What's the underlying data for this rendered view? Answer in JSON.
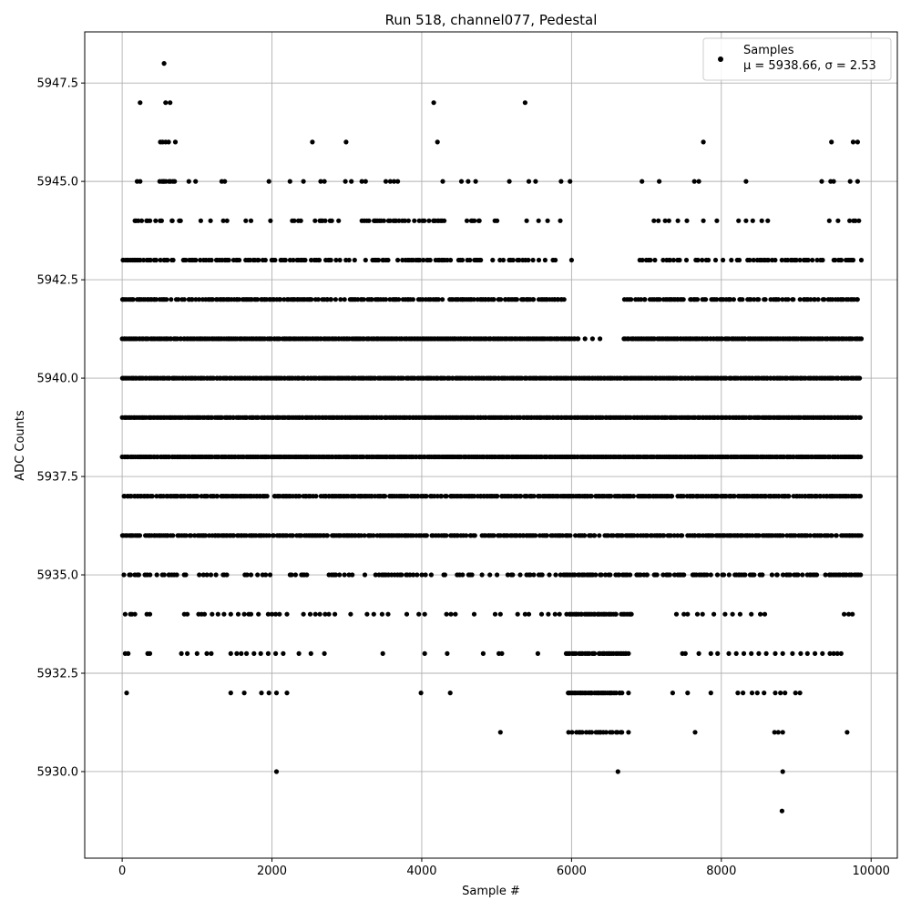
{
  "chart_data": {
    "type": "scatter",
    "title": "Run 518, channel077, Pedestal",
    "xlabel": "Sample #",
    "ylabel": "ADC Counts",
    "xlim": [
      -500,
      10350
    ],
    "ylim": [
      5927.8,
      5948.8
    ],
    "xticks": [
      0,
      2000,
      4000,
      6000,
      8000,
      10000
    ],
    "xtick_labels": [
      "0",
      "2000",
      "4000",
      "6000",
      "8000",
      "10000"
    ],
    "yticks": [
      5930.0,
      5932.5,
      5935.0,
      5937.5,
      5940.0,
      5942.5,
      5945.0,
      5947.5
    ],
    "ytick_labels": [
      "5930.0",
      "5932.5",
      "5935.0",
      "5937.5",
      "5940.0",
      "5942.5",
      "5945.0",
      "5947.5"
    ],
    "grid": true,
    "legend": {
      "placement": "top-right",
      "entries": [
        "Samples",
        "μ = 5938.66, σ = 2.53"
      ]
    },
    "marker_color": "#000000",
    "x_range": [
      0,
      9870
    ],
    "bands": [
      {
        "y": 5929,
        "segments": [],
        "points": [
          8810
        ]
      },
      {
        "y": 5930,
        "segments": [],
        "points": [
          2060,
          6620,
          8820
        ]
      },
      {
        "y": 5931,
        "segments": [
          [
            5950,
            6700,
            0.6
          ]
        ],
        "points": [
          5050,
          6760,
          7650,
          8710,
          8760,
          8820,
          9680
        ]
      },
      {
        "y": 5932,
        "segments": [
          [
            5950,
            6700,
            0.9
          ]
        ],
        "points": [
          60,
          1450,
          1630,
          1860,
          1960,
          2060,
          2200,
          3990,
          4380,
          6760,
          7350,
          7550,
          7860,
          8220,
          8290,
          8410,
          8480,
          8570,
          8720,
          8790,
          8850,
          8990,
          9050
        ]
      },
      {
        "y": 5933,
        "segments": [
          [
            5920,
            6760,
            0.9
          ]
        ],
        "points": [
          40,
          80,
          340,
          370,
          790,
          870,
          1000,
          1130,
          1190,
          1450,
          1530,
          1590,
          1660,
          1760,
          1850,
          1950,
          2050,
          2150,
          2360,
          2520,
          2700,
          3480,
          4040,
          4340,
          4820,
          5030,
          5070,
          5550,
          7480,
          7520,
          7700,
          7860,
          7950,
          8100,
          8200,
          8300,
          8400,
          8500,
          8600,
          8720,
          8820,
          8950,
          9060,
          9150,
          9250,
          9350,
          9450,
          9500,
          9550,
          9600
        ]
      },
      {
        "y": 5934,
        "segments": [
          [
            5900,
            6850,
            0.9
          ]
        ],
        "points": [
          40,
          110,
          130,
          170,
          330,
          370,
          830,
          870,
          1020,
          1060,
          1100,
          1200,
          1280,
          1360,
          1450,
          1550,
          1630,
          1690,
          1720,
          1820,
          1950,
          2000,
          2050,
          2100,
          2200,
          2420,
          2510,
          2580,
          2640,
          2710,
          2760,
          2840,
          3050,
          3270,
          3360,
          3470,
          3550,
          3800,
          3960,
          4040,
          4330,
          4390,
          4450,
          4700,
          4980,
          5050,
          5280,
          5380,
          5430,
          5600,
          5690,
          5780,
          5840,
          7400,
          7500,
          7550,
          7680,
          7750,
          7900,
          8050,
          8150,
          8250,
          8400,
          8520,
          8580,
          9640,
          9700,
          9750
        ]
      },
      {
        "y": 5935,
        "segments": [
          [
            5850,
            9870,
            0.7
          ],
          [
            0,
            5800,
            0.3
          ]
        ],
        "points": []
      },
      {
        "y": 5936,
        "segments": [
          [
            0,
            9870,
            0.8
          ]
        ],
        "points": []
      },
      {
        "y": 5937,
        "segments": [
          [
            0,
            9870,
            0.9
          ]
        ],
        "points": []
      },
      {
        "y": 5938,
        "segments": [
          [
            0,
            9870,
            1.0
          ]
        ],
        "points": []
      },
      {
        "y": 5939,
        "segments": [
          [
            0,
            9870,
            1.0
          ]
        ],
        "points": []
      },
      {
        "y": 5940,
        "segments": [
          [
            0,
            9870,
            1.0
          ]
        ],
        "points": []
      },
      {
        "y": 5941,
        "segments": [
          [
            0,
            6100,
            1.0
          ],
          [
            6700,
            9870,
            1.0
          ]
        ],
        "points": [
          6180,
          6280,
          6380
        ]
      },
      {
        "y": 5942,
        "segments": [
          [
            0,
            5900,
            0.8
          ],
          [
            6700,
            9870,
            0.7
          ]
        ],
        "points": []
      },
      {
        "y": 5943,
        "segments": [
          [
            0,
            5800,
            0.5
          ],
          [
            6900,
            9870,
            0.5
          ]
        ],
        "points": [
          6000
        ]
      },
      {
        "y": 5944,
        "segments": [
          [
            170,
            800,
            0.6
          ],
          [
            2200,
            2900,
            0.4
          ],
          [
            3200,
            4300,
            0.5
          ],
          [
            4600,
            5100,
            0.5
          ],
          [
            9350,
            9870,
            0.3
          ]
        ],
        "points": [
          1050,
          1180,
          1350,
          1400,
          1650,
          1720,
          1980,
          5400,
          5560,
          5680,
          5850,
          7100,
          7160,
          7250,
          7300,
          7420,
          7540,
          7760,
          7940,
          8230,
          8330,
          8420,
          8540,
          8620
        ]
      },
      {
        "y": 5945,
        "segments": [
          [
            500,
            700,
            0.8
          ]
        ],
        "points": [
          200,
          240,
          890,
          980,
          1330,
          1370,
          1960,
          2240,
          2420,
          2650,
          2700,
          2980,
          3060,
          3200,
          3250,
          3520,
          3580,
          3630,
          3680,
          4280,
          4530,
          4620,
          4720,
          5170,
          5430,
          5520,
          5860,
          5980,
          6940,
          7170,
          7640,
          7700,
          8330,
          9340,
          9460,
          9500,
          9720,
          9820
        ]
      },
      {
        "y": 5946,
        "segments": [],
        "points": [
          510,
          540,
          580,
          620,
          710,
          2540,
          2990,
          4210,
          7760,
          9470,
          9760,
          9820
        ]
      },
      {
        "y": 5947,
        "segments": [],
        "points": [
          240,
          580,
          640,
          4160,
          5380
        ]
      },
      {
        "y": 5948,
        "segments": [],
        "points": [
          560
        ]
      }
    ]
  }
}
